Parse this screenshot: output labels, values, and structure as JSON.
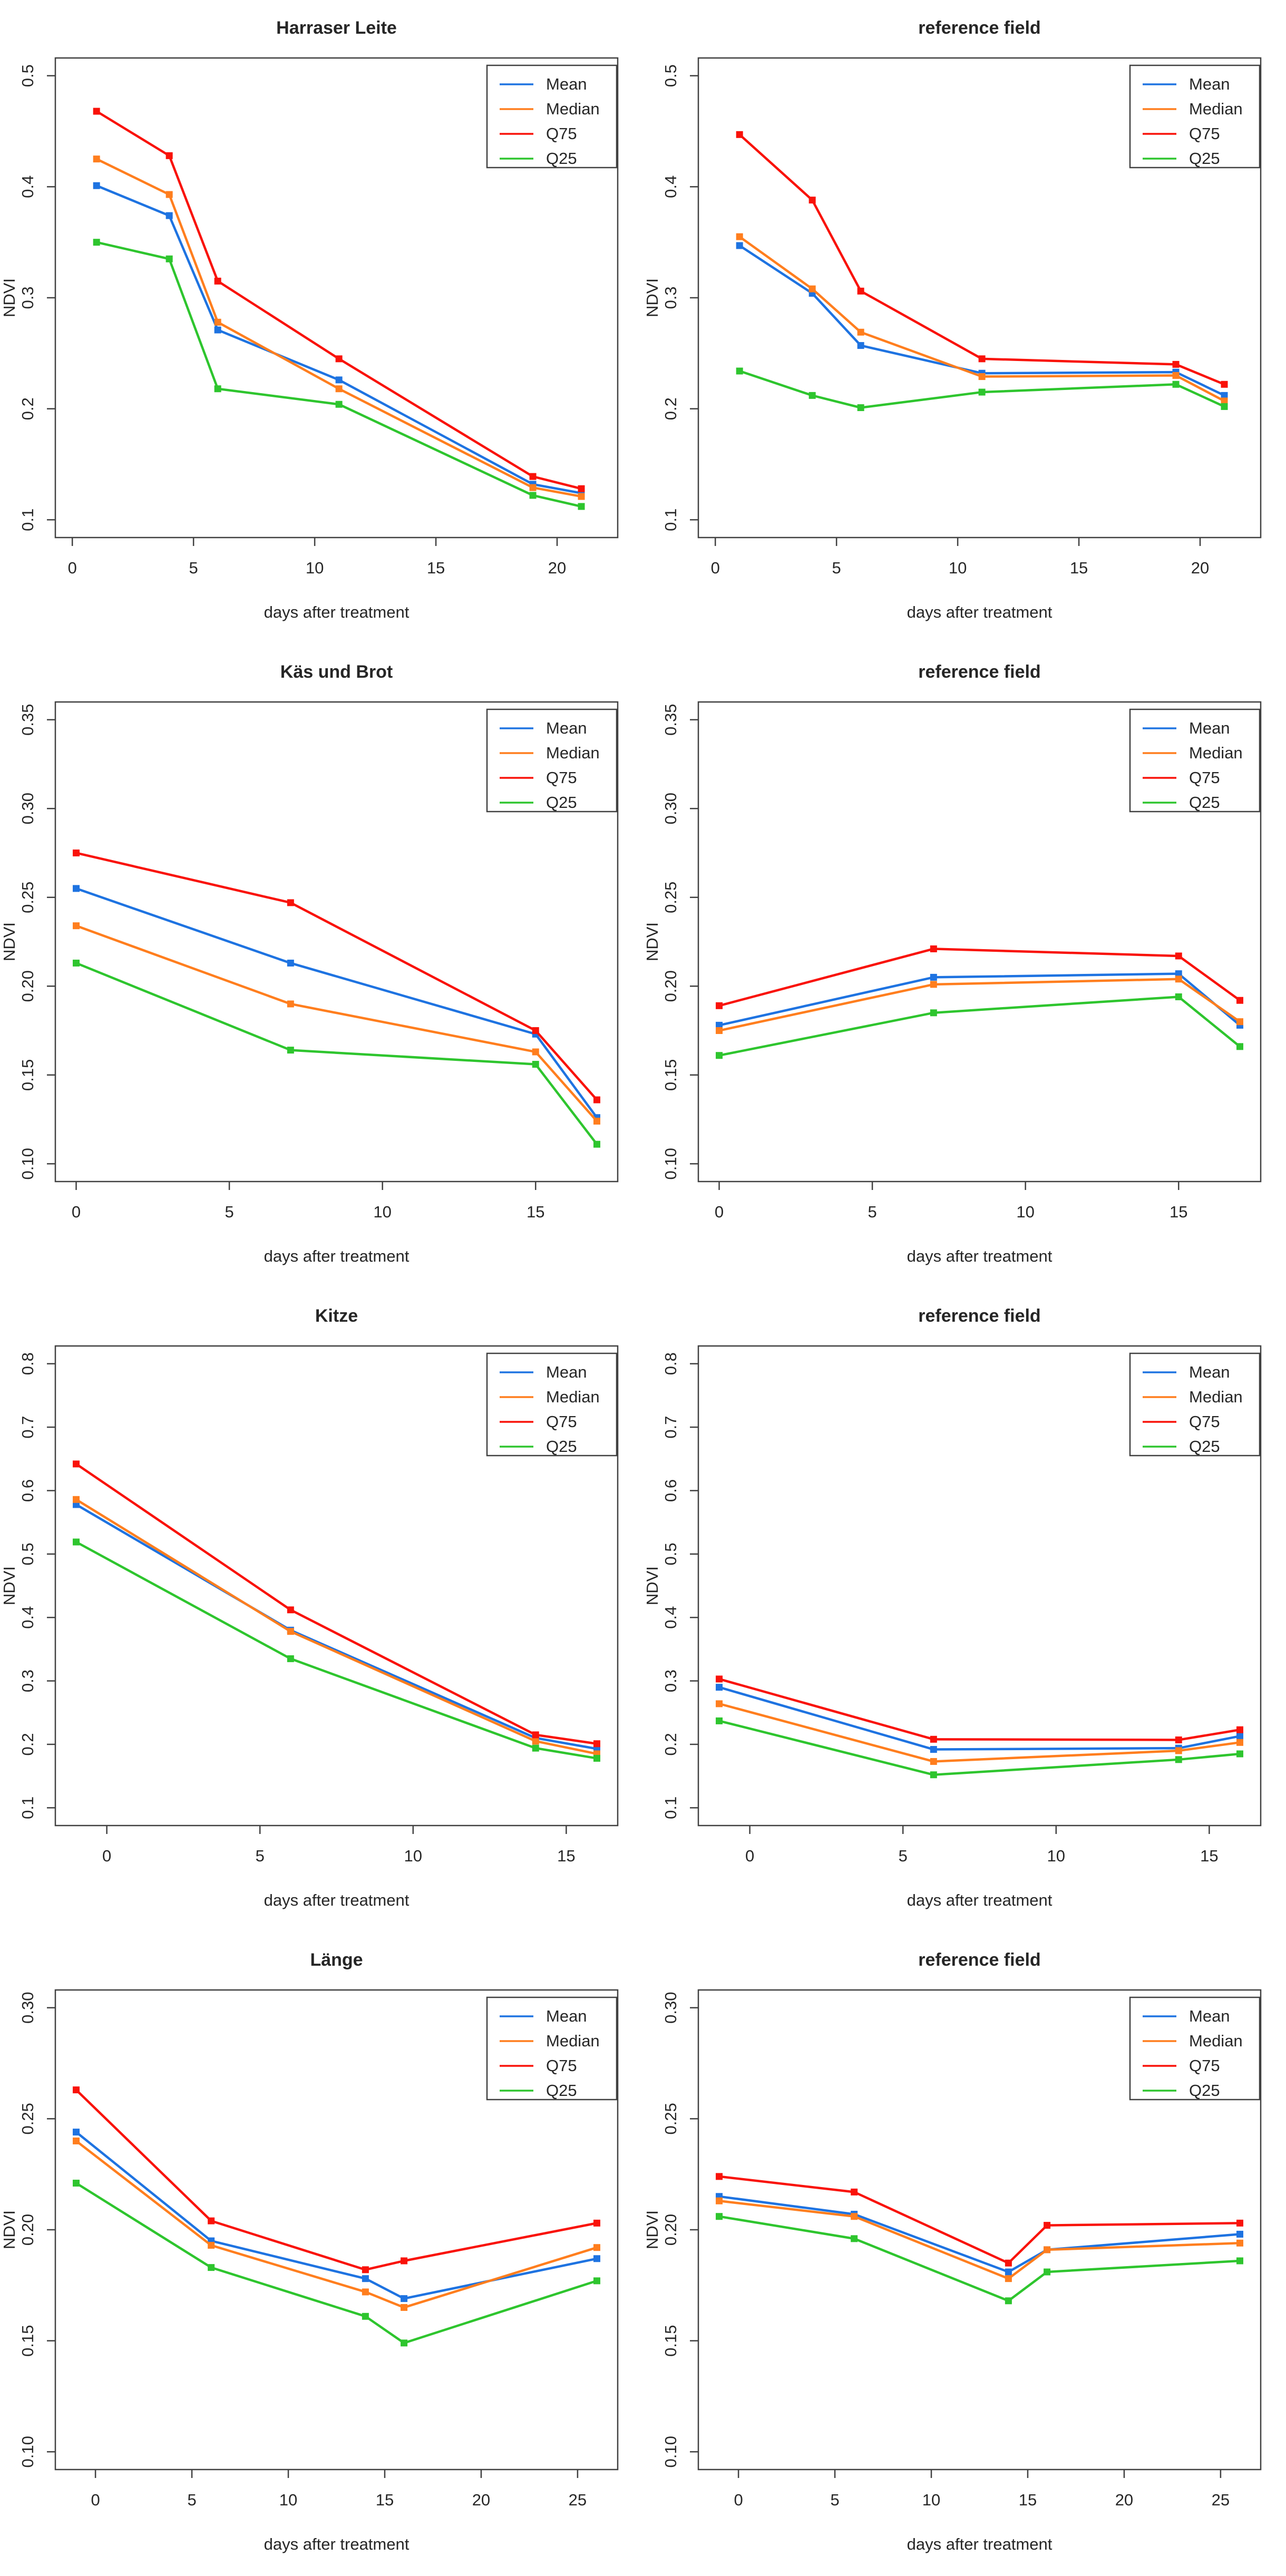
{
  "page": {
    "background": "#ffffff",
    "figure_name": "NDVI time series panels"
  },
  "style": {
    "axis_color": "#404040",
    "text_color": "#262626",
    "title_color": "#1a1a1a",
    "series_colors": {
      "mean": "#1E73E1",
      "median": "#FF7E1E",
      "q75": "#F91209",
      "q25": "#2EC52E"
    }
  },
  "chart_data": [
    {
      "type": "line",
      "title": "Harraser Leite",
      "xlabel": "days after treatment",
      "ylabel": "NDVI",
      "grid": false,
      "legend": {
        "position": "top-right",
        "entries": [
          "Mean",
          "Median",
          "Q75",
          "Q25"
        ]
      },
      "xlim": [
        -0.7,
        22.5
      ],
      "ylim": [
        0.084,
        0.516
      ],
      "xticks": [
        0,
        5,
        10,
        15,
        20
      ],
      "xtick_labels": [
        "0",
        "5",
        "10",
        "15",
        "20"
      ],
      "yticks": [
        0.1,
        0.2,
        0.3,
        0.4,
        0.5
      ],
      "ytick_labels": [
        "0.1",
        "0.2",
        "0.3",
        "0.4",
        "0.5"
      ],
      "x": [
        1,
        4,
        6,
        11,
        19,
        21
      ],
      "series": [
        {
          "name": "Mean",
          "color": "#1E73E1",
          "values": [
            0.401,
            0.374,
            0.271,
            0.226,
            0.132,
            0.124
          ]
        },
        {
          "name": "Median",
          "color": "#FF7E1E",
          "values": [
            0.425,
            0.393,
            0.278,
            0.218,
            0.129,
            0.121
          ]
        },
        {
          "name": "Q75",
          "color": "#F91209",
          "values": [
            0.468,
            0.428,
            0.315,
            0.245,
            0.139,
            0.128
          ]
        },
        {
          "name": "Q25",
          "color": "#2EC52E",
          "values": [
            0.35,
            0.335,
            0.218,
            0.204,
            0.122,
            0.112
          ]
        }
      ]
    },
    {
      "type": "line",
      "title": "reference field",
      "xlabel": "days after treatment",
      "ylabel": "NDVI",
      "grid": false,
      "legend": {
        "position": "top-right",
        "entries": [
          "Mean",
          "Median",
          "Q75",
          "Q25"
        ]
      },
      "xlim": [
        -0.7,
        22.5
      ],
      "ylim": [
        0.084,
        0.516
      ],
      "xticks": [
        0,
        5,
        10,
        15,
        20
      ],
      "xtick_labels": [
        "0",
        "5",
        "10",
        "15",
        "20"
      ],
      "yticks": [
        0.1,
        0.2,
        0.3,
        0.4,
        0.5
      ],
      "ytick_labels": [
        "0.1",
        "0.2",
        "0.3",
        "0.4",
        "0.5"
      ],
      "x": [
        1,
        4,
        6,
        11,
        19,
        21
      ],
      "series": [
        {
          "name": "Mean",
          "color": "#1E73E1",
          "values": [
            0.347,
            0.304,
            0.257,
            0.232,
            0.233,
            0.212
          ]
        },
        {
          "name": "Median",
          "color": "#FF7E1E",
          "values": [
            0.355,
            0.308,
            0.269,
            0.229,
            0.23,
            0.207
          ]
        },
        {
          "name": "Q75",
          "color": "#F91209",
          "values": [
            0.447,
            0.388,
            0.306,
            0.245,
            0.24,
            0.222
          ]
        },
        {
          "name": "Q25",
          "color": "#2EC52E",
          "values": [
            0.234,
            0.212,
            0.201,
            0.215,
            0.222,
            0.202
          ]
        }
      ]
    },
    {
      "type": "line",
      "title": "Käs und Brot",
      "xlabel": "days after treatment",
      "ylabel": "NDVI",
      "grid": false,
      "legend": {
        "position": "top-right",
        "entries": [
          "Mean",
          "Median",
          "Q75",
          "Q25"
        ]
      },
      "xlim": [
        -0.68,
        17.68
      ],
      "ylim": [
        0.09,
        0.36
      ],
      "xticks": [
        0,
        5,
        10,
        15
      ],
      "xtick_labels": [
        "0",
        "5",
        "10",
        "15"
      ],
      "yticks": [
        0.1,
        0.15,
        0.2,
        0.25,
        0.3,
        0.35
      ],
      "ytick_labels": [
        "0.10",
        "0.15",
        "0.20",
        "0.25",
        "0.30",
        "0.35"
      ],
      "x": [
        0,
        7,
        15,
        17
      ],
      "series": [
        {
          "name": "Mean",
          "color": "#1E73E1",
          "values": [
            0.255,
            0.213,
            0.173,
            0.126
          ]
        },
        {
          "name": "Median",
          "color": "#FF7E1E",
          "values": [
            0.234,
            0.19,
            0.163,
            0.124
          ]
        },
        {
          "name": "Q75",
          "color": "#F91209",
          "values": [
            0.275,
            0.247,
            0.175,
            0.136
          ]
        },
        {
          "name": "Q25",
          "color": "#2EC52E",
          "values": [
            0.213,
            0.164,
            0.156,
            0.111
          ]
        }
      ]
    },
    {
      "type": "line",
      "title": "reference field",
      "xlabel": "days after treatment",
      "ylabel": "NDVI",
      "grid": false,
      "legend": {
        "position": "top-right",
        "entries": [
          "Mean",
          "Median",
          "Q75",
          "Q25"
        ]
      },
      "xlim": [
        -0.68,
        17.68
      ],
      "ylim": [
        0.09,
        0.36
      ],
      "xticks": [
        0,
        5,
        10,
        15
      ],
      "xtick_labels": [
        "0",
        "5",
        "10",
        "15"
      ],
      "yticks": [
        0.1,
        0.15,
        0.2,
        0.25,
        0.3,
        0.35
      ],
      "ytick_labels": [
        "0.10",
        "0.15",
        "0.20",
        "0.25",
        "0.30",
        "0.35"
      ],
      "x": [
        0,
        7,
        15,
        17
      ],
      "series": [
        {
          "name": "Mean",
          "color": "#1E73E1",
          "values": [
            0.178,
            0.205,
            0.207,
            0.178
          ]
        },
        {
          "name": "Median",
          "color": "#FF7E1E",
          "values": [
            0.175,
            0.201,
            0.204,
            0.18
          ]
        },
        {
          "name": "Q75",
          "color": "#F91209",
          "values": [
            0.189,
            0.221,
            0.217,
            0.192
          ]
        },
        {
          "name": "Q25",
          "color": "#2EC52E",
          "values": [
            0.161,
            0.185,
            0.194,
            0.166
          ]
        }
      ]
    },
    {
      "type": "line",
      "title": "Kitze",
      "xlabel": "days after treatment",
      "ylabel": "NDVI",
      "grid": false,
      "legend": {
        "position": "top-right",
        "entries": [
          "Mean",
          "Median",
          "Q75",
          "Q25"
        ]
      },
      "xlim": [
        -1.68,
        16.68
      ],
      "ylim": [
        0.072,
        0.828
      ],
      "xticks": [
        0,
        5,
        10,
        15
      ],
      "xtick_labels": [
        "0",
        "5",
        "10",
        "15"
      ],
      "yticks": [
        0.1,
        0.2,
        0.3,
        0.4,
        0.5,
        0.6,
        0.7,
        0.8
      ],
      "ytick_labels": [
        "0.1",
        "0.2",
        "0.3",
        "0.4",
        "0.5",
        "0.6",
        "0.7",
        "0.8"
      ],
      "x": [
        -1,
        6,
        14,
        16
      ],
      "series": [
        {
          "name": "Mean",
          "color": "#1E73E1",
          "values": [
            0.578,
            0.38,
            0.21,
            0.193
          ]
        },
        {
          "name": "Median",
          "color": "#FF7E1E",
          "values": [
            0.586,
            0.378,
            0.205,
            0.185
          ]
        },
        {
          "name": "Q75",
          "color": "#F91209",
          "values": [
            0.642,
            0.412,
            0.215,
            0.201
          ]
        },
        {
          "name": "Q25",
          "color": "#2EC52E",
          "values": [
            0.519,
            0.335,
            0.194,
            0.178
          ]
        }
      ]
    },
    {
      "type": "line",
      "title": "reference field",
      "xlabel": "days after treatment",
      "ylabel": "NDVI",
      "grid": false,
      "legend": {
        "position": "top-right",
        "entries": [
          "Mean",
          "Median",
          "Q75",
          "Q25"
        ]
      },
      "xlim": [
        -1.68,
        16.68
      ],
      "ylim": [
        0.072,
        0.828
      ],
      "xticks": [
        0,
        5,
        10,
        15
      ],
      "xtick_labels": [
        "0",
        "5",
        "10",
        "15"
      ],
      "yticks": [
        0.1,
        0.2,
        0.3,
        0.4,
        0.5,
        0.6,
        0.7,
        0.8
      ],
      "ytick_labels": [
        "0.1",
        "0.2",
        "0.3",
        "0.4",
        "0.5",
        "0.6",
        "0.7",
        "0.8"
      ],
      "x": [
        -1,
        6,
        14,
        16
      ],
      "series": [
        {
          "name": "Mean",
          "color": "#1E73E1",
          "values": [
            0.29,
            0.192,
            0.194,
            0.213
          ]
        },
        {
          "name": "Median",
          "color": "#FF7E1E",
          "values": [
            0.264,
            0.173,
            0.19,
            0.203
          ]
        },
        {
          "name": "Q75",
          "color": "#F91209",
          "values": [
            0.303,
            0.208,
            0.207,
            0.223
          ]
        },
        {
          "name": "Q25",
          "color": "#2EC52E",
          "values": [
            0.237,
            0.152,
            0.176,
            0.185
          ]
        }
      ]
    },
    {
      "type": "line",
      "title": "Länge",
      "xlabel": "days after treatment",
      "ylabel": "NDVI",
      "grid": false,
      "legend": {
        "position": "top-right",
        "entries": [
          "Mean",
          "Median",
          "Q75",
          "Q25"
        ]
      },
      "xlim": [
        -2.08,
        27.08
      ],
      "ylim": [
        0.092,
        0.308
      ],
      "xticks": [
        0,
        5,
        10,
        15,
        20,
        25
      ],
      "xtick_labels": [
        "0",
        "5",
        "10",
        "15",
        "20",
        "25"
      ],
      "yticks": [
        0.1,
        0.15,
        0.2,
        0.25,
        0.3
      ],
      "ytick_labels": [
        "0.10",
        "0.15",
        "0.20",
        "0.25",
        "0.30"
      ],
      "x": [
        -1,
        6,
        14,
        16,
        26
      ],
      "series": [
        {
          "name": "Mean",
          "color": "#1E73E1",
          "values": [
            0.244,
            0.195,
            0.178,
            0.169,
            0.187
          ]
        },
        {
          "name": "Median",
          "color": "#FF7E1E",
          "values": [
            0.24,
            0.193,
            0.172,
            0.165,
            0.192
          ]
        },
        {
          "name": "Q75",
          "color": "#F91209",
          "values": [
            0.263,
            0.204,
            0.182,
            0.186,
            0.203
          ]
        },
        {
          "name": "Q25",
          "color": "#2EC52E",
          "values": [
            0.221,
            0.183,
            0.161,
            0.149,
            0.177
          ]
        }
      ]
    },
    {
      "type": "line",
      "title": "reference field",
      "xlabel": "days after treatment",
      "ylabel": "NDVI",
      "grid": false,
      "legend": {
        "position": "top-right",
        "entries": [
          "Mean",
          "Median",
          "Q75",
          "Q25"
        ]
      },
      "xlim": [
        -2.08,
        27.08
      ],
      "ylim": [
        0.092,
        0.308
      ],
      "xticks": [
        0,
        5,
        10,
        15,
        20,
        25
      ],
      "xtick_labels": [
        "0",
        "5",
        "10",
        "15",
        "20",
        "25"
      ],
      "yticks": [
        0.1,
        0.15,
        0.2,
        0.25,
        0.3
      ],
      "ytick_labels": [
        "0.10",
        "0.15",
        "0.20",
        "0.25",
        "0.30"
      ],
      "x": [
        -1,
        6,
        14,
        16,
        26
      ],
      "series": [
        {
          "name": "Mean",
          "color": "#1E73E1",
          "values": [
            0.215,
            0.207,
            0.181,
            0.191,
            0.198
          ]
        },
        {
          "name": "Median",
          "color": "#FF7E1E",
          "values": [
            0.213,
            0.206,
            0.178,
            0.191,
            0.194
          ]
        },
        {
          "name": "Q75",
          "color": "#F91209",
          "values": [
            0.224,
            0.217,
            0.185,
            0.202,
            0.203
          ]
        },
        {
          "name": "Q25",
          "color": "#2EC52E",
          "values": [
            0.206,
            0.196,
            0.168,
            0.181,
            0.186
          ]
        }
      ]
    }
  ]
}
